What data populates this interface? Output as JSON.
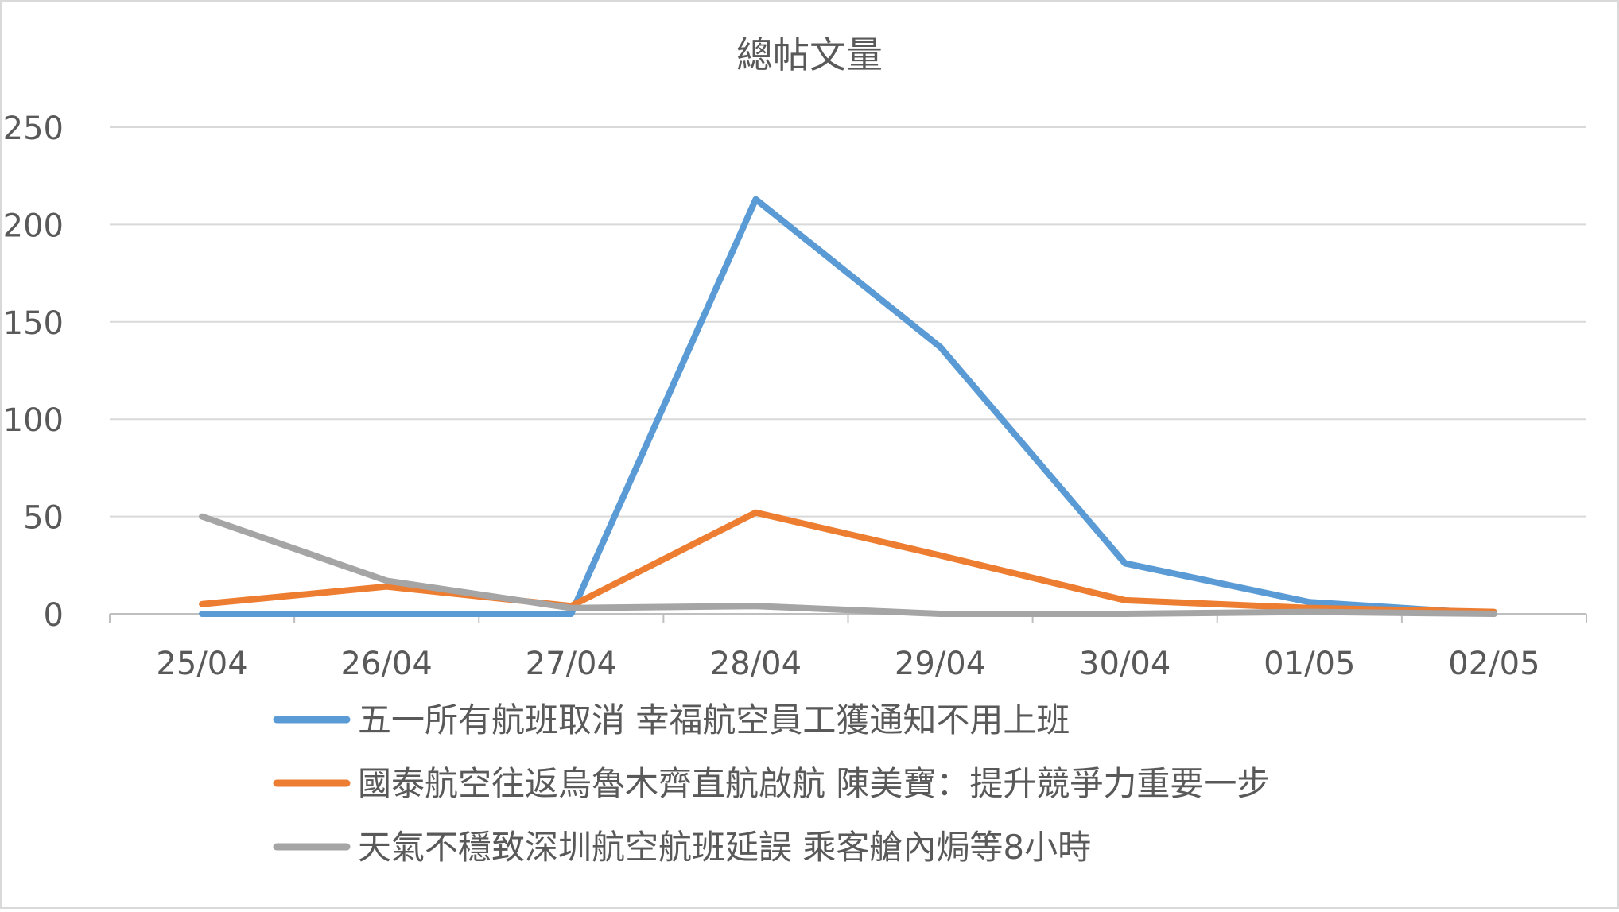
{
  "chart_data": {
    "type": "line",
    "title": "總帖文量",
    "xlabel": "",
    "ylabel": "",
    "categories": [
      "25/04",
      "26/04",
      "27/04",
      "28/04",
      "29/04",
      "30/04",
      "01/05",
      "02/05"
    ],
    "ylim": [
      0,
      250
    ],
    "yticks": [
      0,
      50,
      100,
      150,
      200,
      250
    ],
    "grid": true,
    "legend_position": "bottom",
    "series": [
      {
        "name": "五一所有航班取消 幸福航空員工獲通知不用上班",
        "color": "#5B9BD5",
        "values": [
          0,
          0,
          0,
          213,
          137,
          26,
          6,
          0
        ]
      },
      {
        "name": "國泰航空往返烏魯木齊直航啟航 陳美寶：提升競爭力重要一步",
        "color": "#ED7D31",
        "values": [
          5,
          14,
          4,
          52,
          30,
          7,
          3,
          1
        ]
      },
      {
        "name": "天氣不穩致深圳航空航班延誤 乘客艙內焗等8小時",
        "color": "#A5A5A5",
        "values": [
          50,
          17,
          3,
          4,
          0,
          0,
          1,
          0
        ]
      }
    ]
  }
}
